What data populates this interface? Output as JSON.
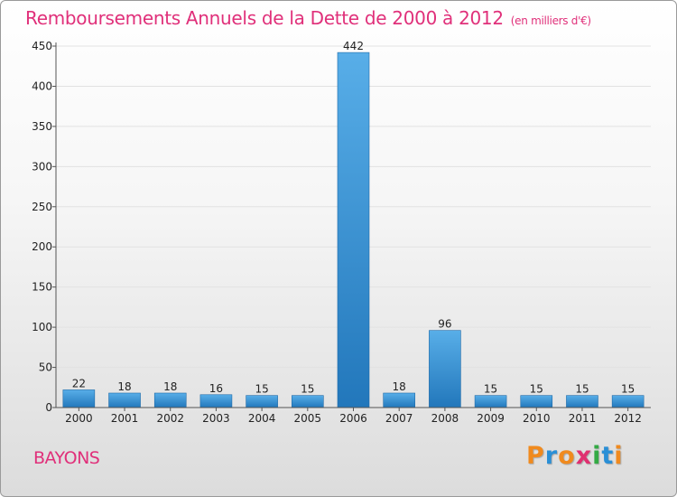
{
  "chart_data": {
    "type": "bar",
    "title": "Remboursements Annuels de la Dette de 2000 à 2012",
    "unit_label": "(en milliers d'€)",
    "categories": [
      "2000",
      "2001",
      "2002",
      "2003",
      "2004",
      "2005",
      "2006",
      "2007",
      "2008",
      "2009",
      "2010",
      "2011",
      "2012"
    ],
    "values": [
      22,
      18,
      18,
      16,
      15,
      15,
      442,
      18,
      96,
      15,
      15,
      15,
      15
    ],
    "yticks": [
      0,
      50,
      100,
      150,
      200,
      250,
      300,
      350,
      400,
      450
    ],
    "ylim": [
      0,
      450
    ],
    "xlabel": "",
    "ylabel": ""
  },
  "commune": "BAYONS",
  "logo": {
    "letters": [
      "P",
      "r",
      "o",
      "x",
      "i",
      "t",
      "i"
    ],
    "colors": [
      "#f08a1e",
      "#2a8fd6",
      "#f08a1e",
      "#e03070",
      "#33aa44",
      "#2a8fd6",
      "#f08a1e"
    ]
  },
  "colors": {
    "accent": "#e0307a",
    "bar_top": "#58aee8",
    "bar_bottom": "#2277bb"
  }
}
